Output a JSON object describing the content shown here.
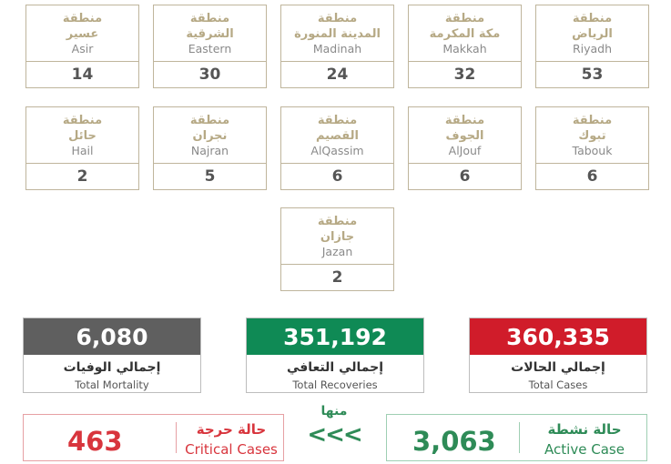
{
  "colors": {
    "card_border": "#bfb59c",
    "region_arabic": "#b6a985",
    "mortality": "#5f5f5f",
    "recoveries": "#0f8a55",
    "cases": "#d01c2a",
    "active_green": "#2e8b57",
    "critical_red": "#d8353d"
  },
  "regions": [
    {
      "prefix": "منطقة",
      "ar": "الرياض",
      "en": "Riyadh",
      "count": "53"
    },
    {
      "prefix": "منطقة",
      "ar": "مكة المكرمة",
      "en": "Makkah",
      "count": "32"
    },
    {
      "prefix": "منطقة",
      "ar": "المدينة المنورة",
      "en": "Madinah",
      "count": "24"
    },
    {
      "prefix": "منطقة",
      "ar": "الشرقية",
      "en": "Eastern",
      "count": "30"
    },
    {
      "prefix": "منطقة",
      "ar": "عسير",
      "en": "Asir",
      "count": "14"
    },
    {
      "prefix": "منطقة",
      "ar": "تبوك",
      "en": "Tabouk",
      "count": "6"
    },
    {
      "prefix": "منطقة",
      "ar": "الجوف",
      "en": "AlJouf",
      "count": "6"
    },
    {
      "prefix": "منطقة",
      "ar": "القصيم",
      "en": "AlQassim",
      "count": "6"
    },
    {
      "prefix": "منطقة",
      "ar": "نجران",
      "en": "Najran",
      "count": "5"
    },
    {
      "prefix": "منطقة",
      "ar": "حائل",
      "en": "Hail",
      "count": "2"
    },
    {
      "prefix": "منطقة",
      "ar": "جازان",
      "en": "Jazan",
      "count": "2"
    }
  ],
  "totals": {
    "mortality": {
      "value": "6,080",
      "ar": "إجمالي الوفيات",
      "en": "Total Mortality"
    },
    "recoveries": {
      "value": "351,192",
      "ar": "إجمالي التعافي",
      "en": "Total Recoveries"
    },
    "cases": {
      "value": "360,335",
      "ar": "إجمالي الحالات",
      "en": "Total Cases"
    }
  },
  "breakdown": {
    "of_which_label": "منها",
    "arrows": "<<<",
    "critical": {
      "value": "463",
      "ar": "حالة حرجة",
      "en": "Critical Cases"
    },
    "active": {
      "value": "3,063",
      "ar": "حالة نشطة",
      "en": "Active Case"
    }
  }
}
